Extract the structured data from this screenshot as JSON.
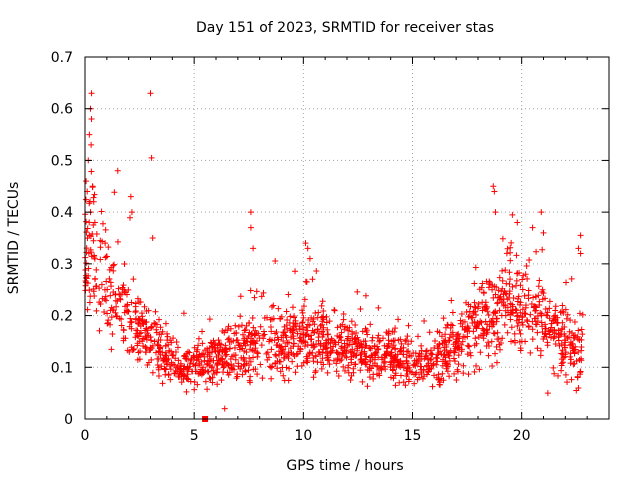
{
  "chart_data": {
    "type": "scatter",
    "title": "Day 151 of 2023, SRMTID for receiver stas",
    "xlabel": "GPS time / hours",
    "ylabel": "SRMTID / TECUs",
    "xlim": [
      0,
      24
    ],
    "ylim": [
      0,
      0.7
    ],
    "x_ticks": [
      0,
      5,
      10,
      15,
      20
    ],
    "x_tick_labels": [
      "0",
      "5",
      "10",
      "15",
      "20"
    ],
    "y_ticks": [
      0,
      0.1,
      0.2,
      0.3,
      0.4,
      0.5,
      0.6,
      0.7
    ],
    "y_tick_labels": [
      "0",
      "0.1",
      "0.2",
      "0.3",
      "0.4",
      "0.5",
      "0.6",
      "0.7"
    ],
    "grid": true,
    "marker": "+",
    "marker_color": "#ff0000",
    "x_end": 22.8,
    "profile": [
      {
        "x": 0.0,
        "y": 0.3
      },
      {
        "x": 0.3,
        "y": 0.32
      },
      {
        "x": 0.8,
        "y": 0.28
      },
      {
        "x": 1.5,
        "y": 0.22
      },
      {
        "x": 2.5,
        "y": 0.17
      },
      {
        "x": 3.5,
        "y": 0.13
      },
      {
        "x": 4.5,
        "y": 0.1
      },
      {
        "x": 5.5,
        "y": 0.11
      },
      {
        "x": 6.5,
        "y": 0.12
      },
      {
        "x": 7.5,
        "y": 0.14
      },
      {
        "x": 8.5,
        "y": 0.15
      },
      {
        "x": 9.5,
        "y": 0.15
      },
      {
        "x": 10.5,
        "y": 0.16
      },
      {
        "x": 11.5,
        "y": 0.14
      },
      {
        "x": 12.5,
        "y": 0.13
      },
      {
        "x": 13.5,
        "y": 0.12
      },
      {
        "x": 14.5,
        "y": 0.12
      },
      {
        "x": 15.5,
        "y": 0.1
      },
      {
        "x": 16.5,
        "y": 0.13
      },
      {
        "x": 17.5,
        "y": 0.16
      },
      {
        "x": 18.5,
        "y": 0.19
      },
      {
        "x": 19.5,
        "y": 0.22
      },
      {
        "x": 20.5,
        "y": 0.21
      },
      {
        "x": 21.5,
        "y": 0.16
      },
      {
        "x": 22.8,
        "y": 0.14
      }
    ],
    "points": [
      {
        "x": 0.3,
        "y": 0.63
      },
      {
        "x": 0.25,
        "y": 0.6
      },
      {
        "x": 0.3,
        "y": 0.58
      },
      {
        "x": 0.2,
        "y": 0.55
      },
      {
        "x": 0.28,
        "y": 0.53
      },
      {
        "x": 0.15,
        "y": 0.5
      },
      {
        "x": 0.05,
        "y": 0.46
      },
      {
        "x": 0.35,
        "y": 0.45
      },
      {
        "x": 0.1,
        "y": 0.44
      },
      {
        "x": 0.4,
        "y": 0.42
      },
      {
        "x": 0.25,
        "y": 0.4
      },
      {
        "x": 3.0,
        "y": 0.63
      },
      {
        "x": 3.05,
        "y": 0.505
      },
      {
        "x": 3.1,
        "y": 0.35
      },
      {
        "x": 1.5,
        "y": 0.48
      },
      {
        "x": 2.1,
        "y": 0.43
      },
      {
        "x": 2.15,
        "y": 0.4
      },
      {
        "x": 7.6,
        "y": 0.4
      },
      {
        "x": 7.6,
        "y": 0.37
      },
      {
        "x": 7.7,
        "y": 0.33
      },
      {
        "x": 18.7,
        "y": 0.45
      },
      {
        "x": 18.75,
        "y": 0.44
      },
      {
        "x": 18.8,
        "y": 0.4
      },
      {
        "x": 20.9,
        "y": 0.4
      },
      {
        "x": 19.8,
        "y": 0.38
      },
      {
        "x": 20.5,
        "y": 0.37
      },
      {
        "x": 21.0,
        "y": 0.36
      },
      {
        "x": 10.1,
        "y": 0.34
      },
      {
        "x": 10.2,
        "y": 0.33
      },
      {
        "x": 10.3,
        "y": 0.31
      },
      {
        "x": 22.7,
        "y": 0.355
      },
      {
        "x": 22.6,
        "y": 0.33
      },
      {
        "x": 22.7,
        "y": 0.32
      },
      {
        "x": 22.5,
        "y": 0.055
      },
      {
        "x": 22.6,
        "y": 0.06
      },
      {
        "x": 21.2,
        "y": 0.05
      },
      {
        "x": 6.4,
        "y": 0.02
      },
      {
        "x": 5.5,
        "y": 0.0
      }
    ]
  }
}
